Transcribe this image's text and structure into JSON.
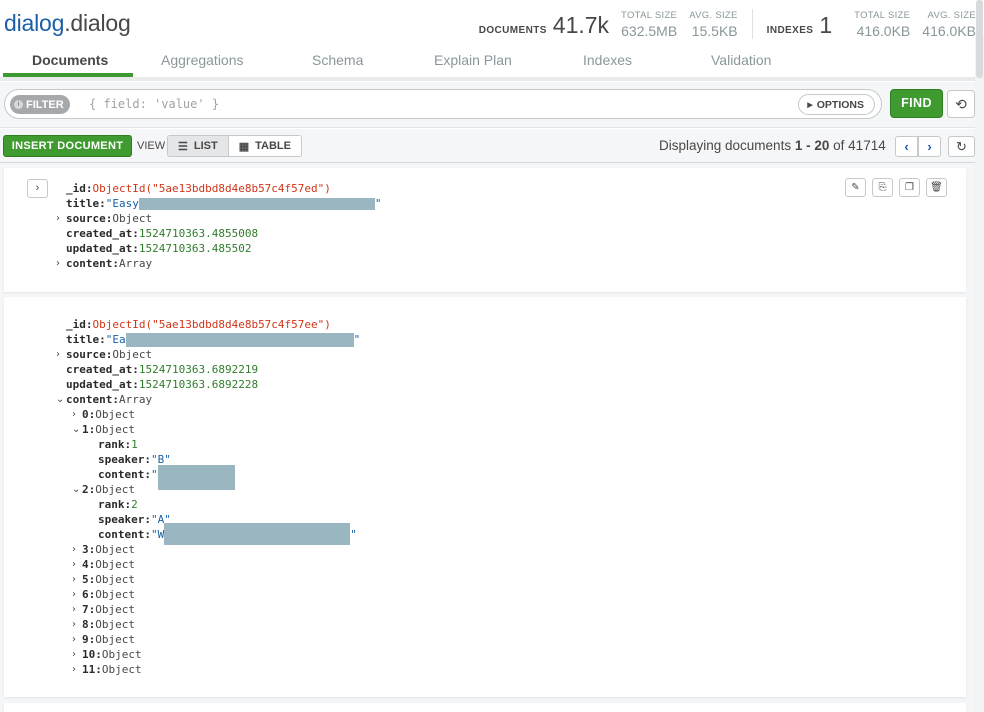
{
  "header": {
    "db": "dialog",
    "sep": ".",
    "collection": "dialog",
    "documents_label": "DOCUMENTS",
    "documents_count": "41.7k",
    "total_size_label": "TOTAL SIZE",
    "total_size": "632.5MB",
    "avg_size_label": "AVG. SIZE",
    "avg_size": "15.5KB",
    "indexes_label": "INDEXES",
    "indexes_count": "1",
    "idx_total_size_label": "TOTAL SIZE",
    "idx_total_size": "416.0KB",
    "idx_avg_size_label": "AVG. SIZE",
    "idx_avg_size": "416.0KB"
  },
  "tabs": [
    "Documents",
    "Aggregations",
    "Schema",
    "Explain Plan",
    "Indexes",
    "Validation"
  ],
  "filter": {
    "pill": "FILTER",
    "placeholder": "{ field: 'value' }",
    "options": "OPTIONS",
    "find": "FIND"
  },
  "toolbar": {
    "insert": "INSERT DOCUMENT",
    "view": "VIEW",
    "list": "LIST",
    "table": "TABLE",
    "paging_prefix": "Displaying documents",
    "paging_range": "1 - 20",
    "paging_of": "of",
    "paging_total": "41714"
  },
  "doc1": {
    "id_key": "_id:",
    "id_val": "ObjectId(\"5ae13bdbd8d4e8b57c4f57ed\")",
    "title_key": "title:",
    "title_val": "\"Easy",
    "title_end": "\"",
    "source_key": "source:",
    "source_val": "Object",
    "created_key": "created_at:",
    "created_val": "1524710363.4855008",
    "updated_key": "updated_at:",
    "updated_val": "1524710363.485502",
    "content_key": "content:",
    "content_val": "Array"
  },
  "doc2": {
    "id_key": "_id:",
    "id_val": "ObjectId(\"5ae13bdbd8d4e8b57c4f57ee\")",
    "title_key": "title:",
    "title_val": "\"Ea",
    "title_end": "\"",
    "source_key": "source:",
    "source_val": "Object",
    "created_key": "created_at:",
    "created_val": "1524710363.6892219",
    "updated_key": "updated_at:",
    "updated_val": "1524710363.6892228",
    "content_key": "content:",
    "content_val": "Array",
    "item0_key": "0:",
    "item0_val": "Object",
    "item1_key": "1:",
    "item1_val": "Object",
    "item1_rank_key": "rank:",
    "item1_rank_val": "1",
    "item1_speaker_key": "speaker:",
    "item1_speaker_val": "\"B\"",
    "item1_content_key": "content:",
    "item1_content_val": "\"",
    "item2_key": "2:",
    "item2_val": "Object",
    "item2_rank_key": "rank:",
    "item2_rank_val": "2",
    "item2_speaker_key": "speaker:",
    "item2_speaker_val": "\"A\"",
    "item2_content_key": "content:",
    "item2_content_val": "\"W",
    "item2_content_end": "\"",
    "item3_key": "3:",
    "item3_val": "Object",
    "item4_key": "4:",
    "item4_val": "Object",
    "item5_key": "5:",
    "item5_val": "Object",
    "item6_key": "6:",
    "item6_val": "Object",
    "item7_key": "7:",
    "item7_val": "Object",
    "item8_key": "8:",
    "item8_val": "Object",
    "item9_key": "9:",
    "item9_val": "Object",
    "item10_key": "10:",
    "item10_val": "Object",
    "item11_key": "11:",
    "item11_val": "Object"
  }
}
